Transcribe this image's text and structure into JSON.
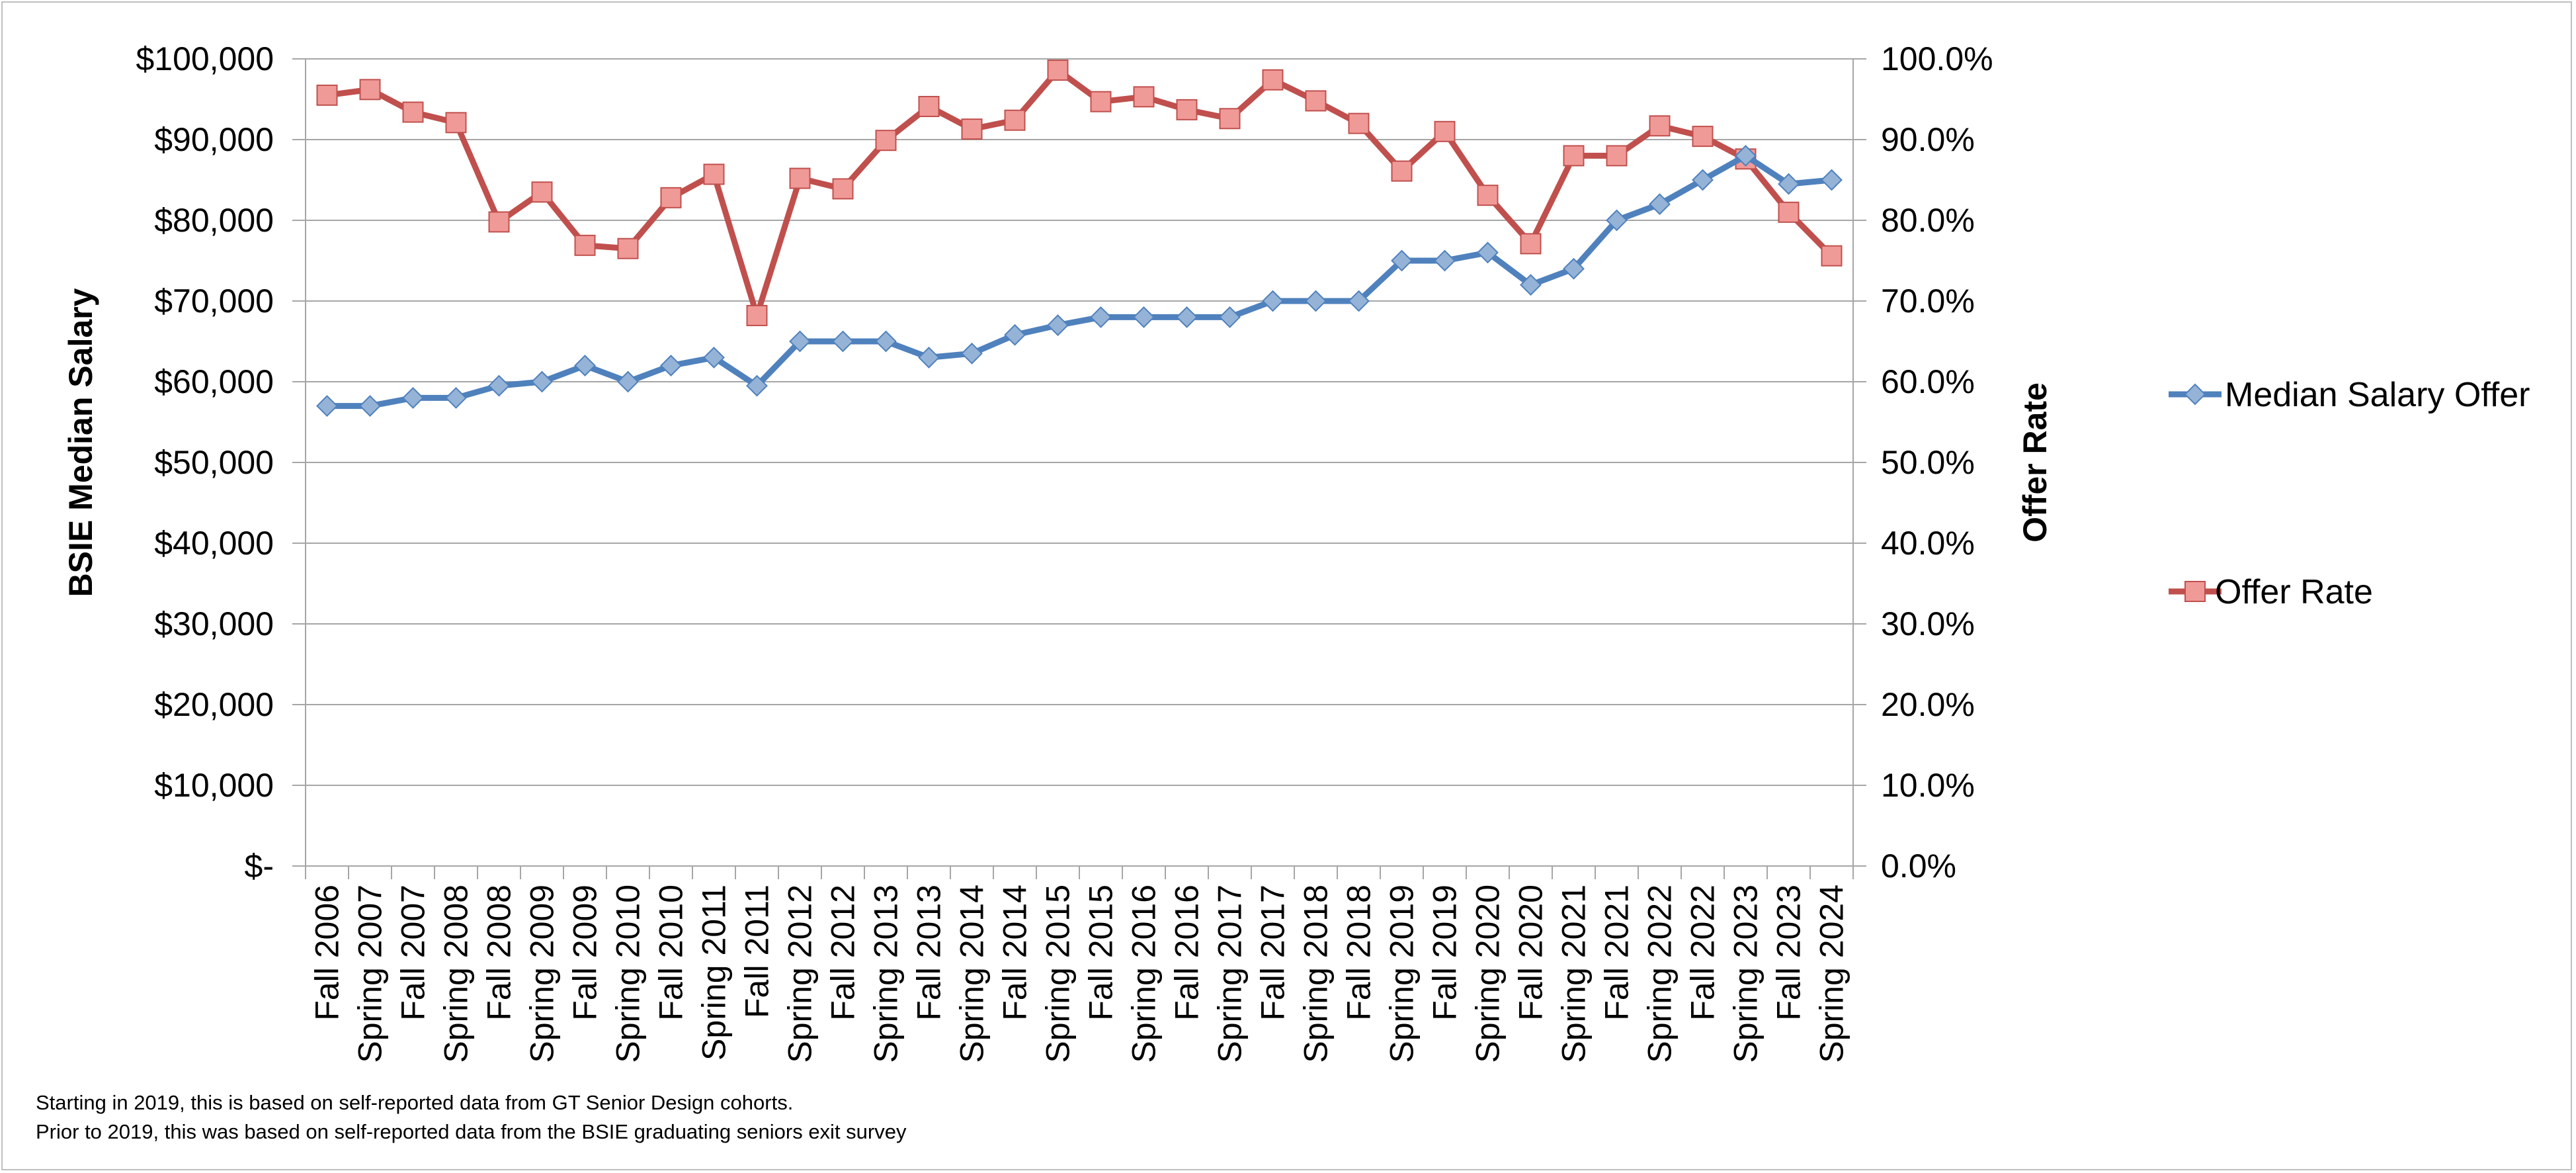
{
  "chart_data": {
    "type": "line",
    "categories": [
      "Fall 2006",
      "Spring 2007",
      "Fall 2007",
      "Spring 2008",
      "Fall 2008",
      "Spring 2009",
      "Fall 2009",
      "Spring 2010",
      "Fall 2010",
      "Spring 2011",
      "Fall 2011",
      "Spring 2012",
      "Fall 2012",
      "Spring 2013",
      "Fall 2013",
      "Spring 2014",
      "Fall 2014",
      "Spring 2015",
      "Fall 2015",
      "Spring 2016",
      "Fall 2016",
      "Spring 2017",
      "Fall 2017",
      "Spring 2018",
      "Fall 2018",
      "Spring 2019",
      "Fall 2019",
      "Spring 2020",
      "Fall 2020",
      "Spring 2021",
      "Fall 2021",
      "Spring 2022",
      "Fall 2022",
      "Spring 2023",
      "Fall 2023",
      "Spring 2024"
    ],
    "series": [
      {
        "name": "Median Salary Offer",
        "axis": "left",
        "color": "#4f81bd",
        "marker": "diamond",
        "values": [
          57000,
          57000,
          58000,
          58000,
          59500,
          60000,
          62000,
          60000,
          62000,
          63000,
          59500,
          65000,
          65000,
          65000,
          63000,
          63500,
          65800,
          67000,
          68000,
          68000,
          68000,
          68000,
          70000,
          70000,
          70000,
          75000,
          75000,
          76000,
          72000,
          74000,
          80000,
          82000,
          85000,
          88000,
          84500,
          85000
        ]
      },
      {
        "name": "Offer Rate",
        "axis": "right",
        "color": "#c0504d",
        "marker": "square",
        "values": [
          95.5,
          96.2,
          93.4,
          92.1,
          79.8,
          83.5,
          76.9,
          76.5,
          82.8,
          85.7,
          68.2,
          85.2,
          83.9,
          89.9,
          94.1,
          91.3,
          92.4,
          98.6,
          94.7,
          95.3,
          93.7,
          92.6,
          97.4,
          94.8,
          92.0,
          86.1,
          91.0,
          83.1,
          77.1,
          88.0,
          88.0,
          91.7,
          90.4,
          87.6,
          81.0,
          75.6
        ]
      }
    ],
    "y_left": {
      "label": "BSIE Median Salary",
      "lim": [
        0,
        100000
      ],
      "ticks": [
        0,
        10000,
        20000,
        30000,
        40000,
        50000,
        60000,
        70000,
        80000,
        90000,
        100000
      ],
      "tick_labels": [
        "$-",
        "$10,000",
        "$20,000",
        "$30,000",
        "$40,000",
        "$50,000",
        "$60,000",
        "$70,000",
        "$80,000",
        "$90,000",
        "$100,000"
      ]
    },
    "y_right": {
      "label": "Offer Rate",
      "lim": [
        0,
        100
      ],
      "ticks": [
        0,
        10,
        20,
        30,
        40,
        50,
        60,
        70,
        80,
        90,
        100
      ],
      "tick_labels": [
        "0.0%",
        "10.0%",
        "20.0%",
        "30.0%",
        "40.0%",
        "50.0%",
        "60.0%",
        "70.0%",
        "80.0%",
        "90.0%",
        "100.0%"
      ]
    },
    "grid": true,
    "legend": "right"
  },
  "footnotes": [
    "Starting in 2019, this is based on self-reported data from GT Senior Design cohorts.",
    "Prior to 2019, this was based on self-reported data from the BSIE graduating seniors exit survey"
  ]
}
